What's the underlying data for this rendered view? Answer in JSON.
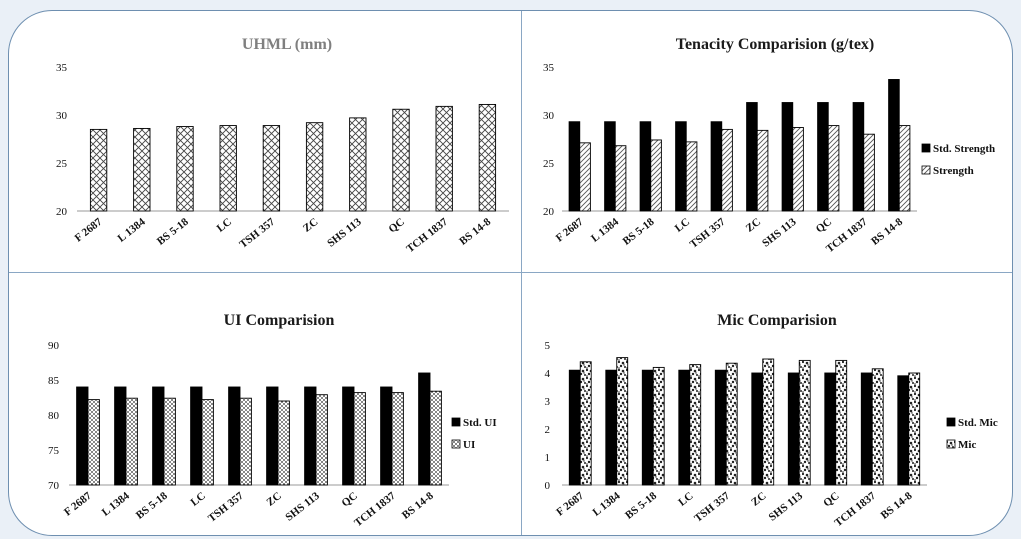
{
  "chart_data": [
    {
      "type": "bar",
      "title": "UHML (mm)",
      "categories": [
        "F 2687",
        "L 1384",
        "BS 5-18",
        "LC",
        "TSH 357",
        "ZC",
        "SHS 113",
        "QC",
        "TCH 1837",
        "BS 14-8"
      ],
      "series": [
        {
          "name": "",
          "values": [
            28.5,
            28.6,
            28.8,
            28.9,
            28.9,
            29.2,
            29.7,
            30.6,
            30.9,
            31.1
          ],
          "pattern": "diamond-hatch"
        }
      ],
      "ylim": [
        20,
        35
      ],
      "yticks": [
        20,
        25,
        30,
        35
      ],
      "legend": "none",
      "grid": false
    },
    {
      "type": "bar",
      "title": "Tenacity Comparision  (g/tex)",
      "categories": [
        "F 2687",
        "L 1384",
        "BS 5-18",
        "LC",
        "TSH 357",
        "ZC",
        "SHS 113",
        "QC",
        "TCH 1837",
        "BS 14-8"
      ],
      "series": [
        {
          "name": "Std. Strength",
          "values": [
            29.3,
            29.3,
            29.3,
            29.3,
            29.3,
            31.3,
            31.3,
            31.3,
            31.3,
            33.7
          ],
          "pattern": "solid"
        },
        {
          "name": "Strength",
          "values": [
            27.1,
            26.8,
            27.4,
            27.2,
            28.5,
            28.4,
            28.7,
            28.9,
            28.0,
            28.9
          ],
          "pattern": "diagonal-hatch"
        }
      ],
      "ylim": [
        20,
        35
      ],
      "yticks": [
        20,
        25,
        30,
        35
      ],
      "legend": "right",
      "grid": false
    },
    {
      "type": "bar",
      "title": "UI Comparision",
      "categories": [
        "F 2687",
        "L 1384",
        "BS 5-18",
        "LC",
        "TSH 357",
        "ZC",
        "SHS 113",
        "QC",
        "TCH 1837",
        "BS 14-8"
      ],
      "series": [
        {
          "name": "Std. UI",
          "values": [
            84,
            84,
            84,
            84,
            84,
            84,
            84,
            84,
            84,
            86
          ],
          "pattern": "solid"
        },
        {
          "name": "UI",
          "values": [
            82.2,
            82.4,
            82.4,
            82.2,
            82.4,
            82.0,
            82.9,
            83.2,
            83.2,
            83.4
          ],
          "pattern": "dots"
        }
      ],
      "ylim": [
        70,
        90
      ],
      "yticks": [
        70,
        75,
        80,
        85,
        90
      ],
      "legend": "right",
      "grid": false
    },
    {
      "type": "bar",
      "title": "Mic Comparision",
      "categories": [
        "F 2687",
        "L 1384",
        "BS 5-18",
        "LC",
        "TSH 357",
        "ZC",
        "SHS 113",
        "QC",
        "TCH 1837",
        "BS 14-8"
      ],
      "series": [
        {
          "name": "Std. Mic",
          "values": [
            4.1,
            4.1,
            4.1,
            4.1,
            4.1,
            4.0,
            4.0,
            4.0,
            4.0,
            3.9
          ],
          "pattern": "solid"
        },
        {
          "name": "Mic",
          "values": [
            4.4,
            4.55,
            4.2,
            4.3,
            4.35,
            4.5,
            4.45,
            4.45,
            4.15,
            4.0
          ],
          "pattern": "speckle"
        }
      ],
      "ylim": [
        0,
        5
      ],
      "yticks": [
        0,
        1,
        2,
        3,
        4,
        5
      ],
      "legend": "right",
      "grid": false
    }
  ]
}
